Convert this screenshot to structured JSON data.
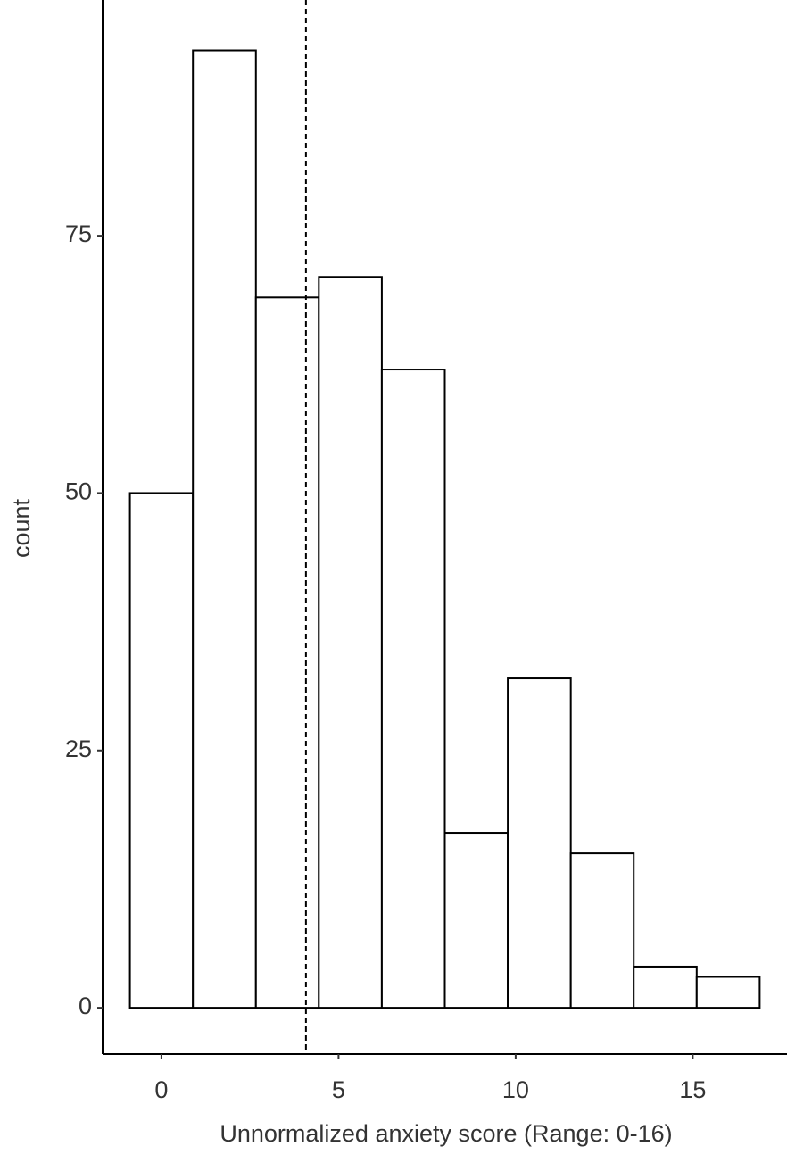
{
  "chart_data": {
    "type": "histogram",
    "x_label": "Unnormalized anxiety score (Range: 0-16)",
    "y_label": "count",
    "bins": [
      -0.889,
      0.889,
      2.667,
      4.444,
      6.222,
      8,
      9.778,
      11.556,
      13.333,
      15.111,
      16.889
    ],
    "counts": [
      50,
      93,
      69,
      71,
      62,
      17,
      32,
      15,
      4,
      3
    ],
    "color": "#ffffff",
    "edge_color": "#000000",
    "vline": 4.08,
    "xlim": [
      -1.66,
      17.66
    ],
    "xticks": [
      0,
      5,
      10,
      15
    ],
    "ylim": [
      -4.5,
      97.9
    ],
    "yticks": [
      0,
      25,
      50,
      75
    ],
    "grid": false
  }
}
